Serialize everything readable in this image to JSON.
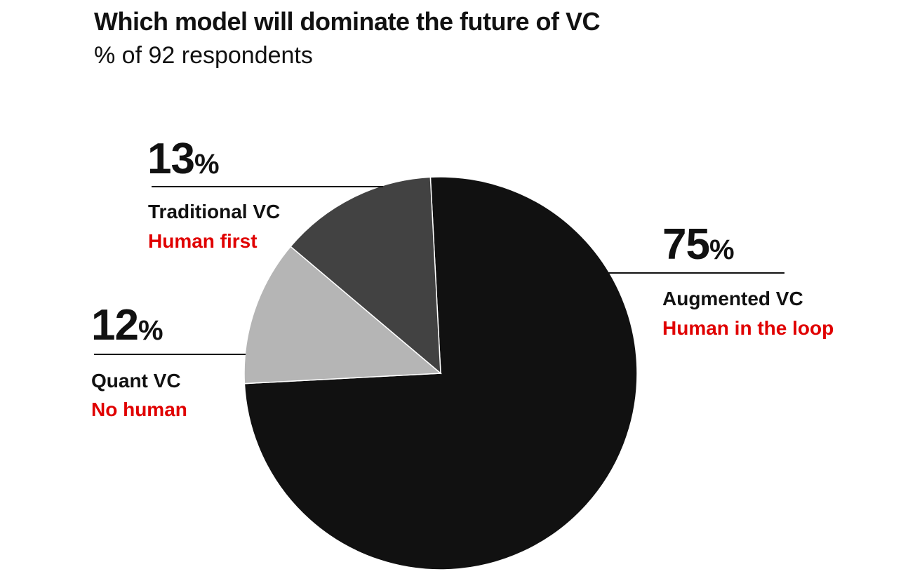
{
  "chart_data": {
    "type": "pie",
    "title": "Which model will dominate the future of VC",
    "subtitle": "% of 92 respondents",
    "slices": [
      {
        "name": "Augmented VC",
        "detail": "Human in the loop",
        "value": 75,
        "value_label": "75",
        "color": "#111111"
      },
      {
        "name": "Quant VC",
        "detail": "No human",
        "value": 12,
        "value_label": "12",
        "color": "#b5b5b5"
      },
      {
        "name": "Traditional VC",
        "detail": "Human first",
        "value": 13,
        "value_label": "13",
        "color": "#424242"
      }
    ],
    "percent_sign": "%",
    "detail_color": "#e00000"
  }
}
